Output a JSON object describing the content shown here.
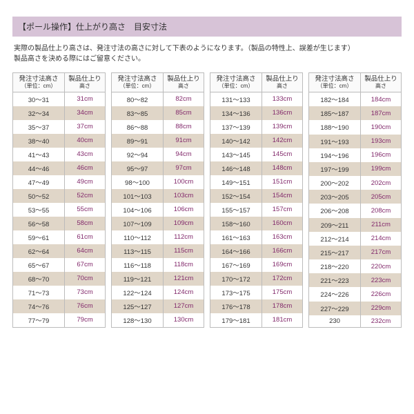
{
  "title": "【ポール操作】仕上がり高さ　目安寸法",
  "description_line1": "実際の製品仕上り高さは、発注寸法の高さに対して下表のようになります。（製品の特性上、誤差が生じます）",
  "description_line2": "製品高さを決める際にはご留意ください。",
  "header_order": "発注寸法高さ",
  "header_order_sub": "（単位：cm）",
  "header_finish": "製品仕上り",
  "header_finish_sub": "高さ",
  "colors": {
    "title_bg": "#d7c3d7",
    "stripe_even": "#e0d6c8",
    "stripe_odd": "#ffffff",
    "finish_text": "#82296b",
    "border": "#bbbbbb"
  },
  "tables": [
    [
      {
        "range": "30～31",
        "finish": "31cm"
      },
      {
        "range": "32～34",
        "finish": "34cm"
      },
      {
        "range": "35～37",
        "finish": "37cm"
      },
      {
        "range": "38～40",
        "finish": "40cm"
      },
      {
        "range": "41～43",
        "finish": "43cm"
      },
      {
        "range": "44～46",
        "finish": "46cm"
      },
      {
        "range": "47～49",
        "finish": "49cm"
      },
      {
        "range": "50～52",
        "finish": "52cm"
      },
      {
        "range": "53～55",
        "finish": "55cm"
      },
      {
        "range": "56～58",
        "finish": "58cm"
      },
      {
        "range": "59～61",
        "finish": "61cm"
      },
      {
        "range": "62～64",
        "finish": "64cm"
      },
      {
        "range": "65～67",
        "finish": "67cm"
      },
      {
        "range": "68～70",
        "finish": "70cm"
      },
      {
        "range": "71～73",
        "finish": "73cm"
      },
      {
        "range": "74～76",
        "finish": "76cm"
      },
      {
        "range": "77～79",
        "finish": "79cm"
      }
    ],
    [
      {
        "range": "80～82",
        "finish": "82cm"
      },
      {
        "range": "83～85",
        "finish": "85cm"
      },
      {
        "range": "86～88",
        "finish": "88cm"
      },
      {
        "range": "89～91",
        "finish": "91cm"
      },
      {
        "range": "92～94",
        "finish": "94cm"
      },
      {
        "range": "95～97",
        "finish": "97cm"
      },
      {
        "range": "98～100",
        "finish": "100cm"
      },
      {
        "range": "101～103",
        "finish": "103cm"
      },
      {
        "range": "104～106",
        "finish": "106cm"
      },
      {
        "range": "107～109",
        "finish": "109cm"
      },
      {
        "range": "110～112",
        "finish": "112cm"
      },
      {
        "range": "113～115",
        "finish": "115cm"
      },
      {
        "range": "116～118",
        "finish": "118cm"
      },
      {
        "range": "119～121",
        "finish": "121cm"
      },
      {
        "range": "122～124",
        "finish": "124cm"
      },
      {
        "range": "125～127",
        "finish": "127cm"
      },
      {
        "range": "128～130",
        "finish": "130cm"
      }
    ],
    [
      {
        "range": "131～133",
        "finish": "133cm"
      },
      {
        "range": "134～136",
        "finish": "136cm"
      },
      {
        "range": "137～139",
        "finish": "139cm"
      },
      {
        "range": "140～142",
        "finish": "142cm"
      },
      {
        "range": "143～145",
        "finish": "145cm"
      },
      {
        "range": "146～148",
        "finish": "148cm"
      },
      {
        "range": "149～151",
        "finish": "151cm"
      },
      {
        "range": "152～154",
        "finish": "154cm"
      },
      {
        "range": "155～157",
        "finish": "157cm"
      },
      {
        "range": "158～160",
        "finish": "160cm"
      },
      {
        "range": "161～163",
        "finish": "163cm"
      },
      {
        "range": "164～166",
        "finish": "166cm"
      },
      {
        "range": "167～169",
        "finish": "169cm"
      },
      {
        "range": "170～172",
        "finish": "172cm"
      },
      {
        "range": "173～175",
        "finish": "175cm"
      },
      {
        "range": "176～178",
        "finish": "178cm"
      },
      {
        "range": "179～181",
        "finish": "181cm"
      }
    ],
    [
      {
        "range": "182～184",
        "finish": "184cm"
      },
      {
        "range": "185～187",
        "finish": "187cm"
      },
      {
        "range": "188～190",
        "finish": "190cm"
      },
      {
        "range": "191～193",
        "finish": "193cm"
      },
      {
        "range": "194～196",
        "finish": "196cm"
      },
      {
        "range": "197～199",
        "finish": "199cm"
      },
      {
        "range": "200～202",
        "finish": "202cm"
      },
      {
        "range": "203～205",
        "finish": "205cm"
      },
      {
        "range": "206～208",
        "finish": "208cm"
      },
      {
        "range": "209～211",
        "finish": "211cm"
      },
      {
        "range": "212～214",
        "finish": "214cm"
      },
      {
        "range": "215～217",
        "finish": "217cm"
      },
      {
        "range": "218～220",
        "finish": "220cm"
      },
      {
        "range": "221～223",
        "finish": "223cm"
      },
      {
        "range": "224～226",
        "finish": "226cm"
      },
      {
        "range": "227～229",
        "finish": "229cm"
      },
      {
        "range": "230",
        "finish": "232cm"
      }
    ]
  ]
}
